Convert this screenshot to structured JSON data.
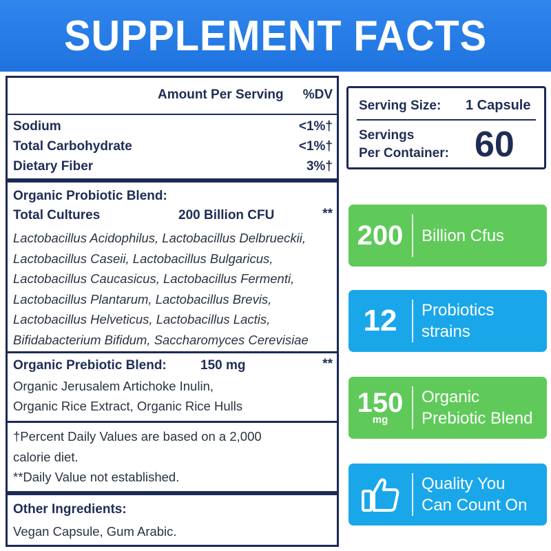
{
  "banner": {
    "title": "SUPPLEMENT FACTS"
  },
  "facts": {
    "header": {
      "amount": "Amount Per Serving",
      "dv": "%DV"
    },
    "nutrients": [
      {
        "name": "Sodium",
        "dv": "<1%†"
      },
      {
        "name": "Total Carbohydrate",
        "dv": "<1%†"
      },
      {
        "name": "Dietary Fiber",
        "dv": "3%†"
      }
    ],
    "probiotic": {
      "title": "Organic Probiotic Blend:",
      "cultures_label": "Total Cultures",
      "cultures_amount": "200 Billion CFU",
      "cultures_dv": "**",
      "strains": [
        "Lactobacillus Acidophilus, Lactobacillus Delbrueckii,",
        "Lactobacillus Caseii, Lactobacillus Bulgaricus,",
        "Lactobacillus Caucasicus, Lactobacillus Fermenti,",
        "Lactobacillus Plantarum, Lactobacillus Brevis,",
        "Lactobacillus Helveticus, Lactobacillus Lactis,",
        "Bifidabacterium Bifidum, Saccharomyces Cerevisiae"
      ]
    },
    "prebiotic": {
      "title": "Organic Prebiotic Blend:",
      "amount": "150 mg",
      "dv": "**",
      "lines": [
        "Organic Jerusalem Artichoke Inulin,",
        "Organic Rice Extract, Organic Rice Hulls"
      ]
    },
    "footnotes": [
      "†Percent Daily Values are based on a 2,000",
      "calorie diet.",
      "**Daily Value not established."
    ],
    "other": {
      "title": "Other Ingredients:",
      "text": "Vegan Capsule, Gum Arabic."
    }
  },
  "serving": {
    "size_label": "Serving Size:",
    "size_value": "1 Capsule",
    "servings_label_1": "Servings",
    "servings_label_2": "Per Container:",
    "servings_value": "60"
  },
  "cards": [
    {
      "big": "200",
      "text_1": "Billion Cfus",
      "text_2": "",
      "color": "#5fca5a"
    },
    {
      "big": "12",
      "text_1": "Probiotics",
      "text_2": "strains",
      "color": "#1aa7ea"
    },
    {
      "big": "150",
      "unit": "mg",
      "text_1": "Organic",
      "text_2": "Prebiotic Blend",
      "color": "#5fca5a"
    },
    {
      "icon": "thumbs-up-icon",
      "text_1": "Quality You",
      "text_2": "Can Count On",
      "color": "#1aa7ea"
    }
  ]
}
